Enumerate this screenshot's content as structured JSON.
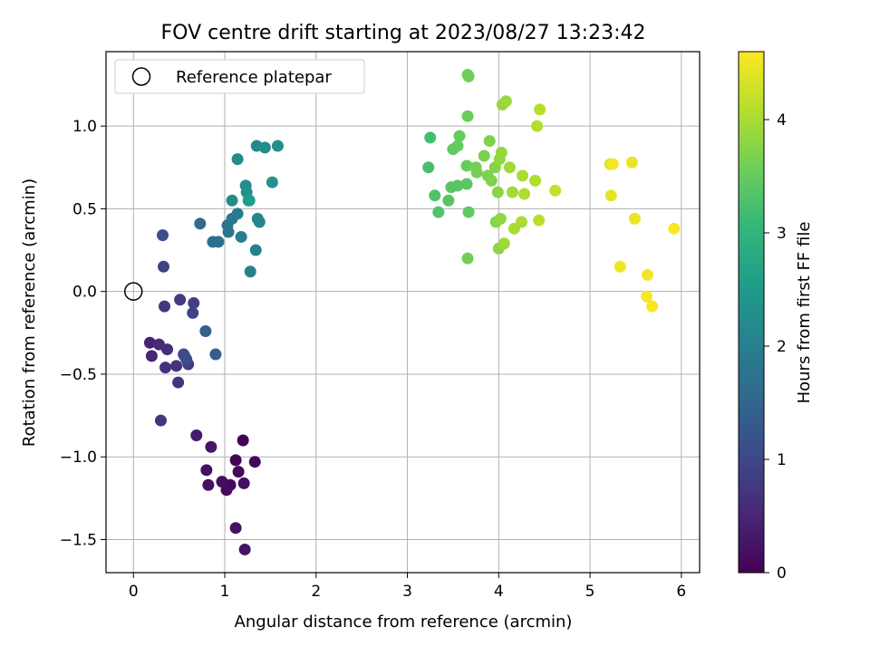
{
  "chart_data": {
    "type": "scatter",
    "title": "FOV centre drift starting at 2023/08/27 13:23:42",
    "xlabel": "Angular distance from reference (arcmin)",
    "ylabel": "Rotation from reference (arcmin)",
    "xlim": [
      -0.3,
      6.2
    ],
    "ylim": [
      -1.7,
      1.45
    ],
    "xticks": [
      0,
      1,
      2,
      3,
      4,
      5,
      6
    ],
    "xtick_labels": [
      "0",
      "1",
      "2",
      "3",
      "4",
      "5",
      "6"
    ],
    "yticks": [
      -1.5,
      -1.0,
      -0.5,
      0.0,
      0.5,
      1.0
    ],
    "ytick_labels": [
      "−1.5",
      "−1.0",
      "−0.5",
      "0.0",
      "0.5",
      "1.0"
    ],
    "grid": true,
    "legend": {
      "placement": "top-left",
      "label": "Reference platepar"
    },
    "reference_point": {
      "x": 0.0,
      "y": 0.0
    },
    "colorbar": {
      "label": "Hours from first FF file",
      "colormap": "viridis",
      "range": [
        0,
        4.6
      ],
      "ticks": [
        0,
        1,
        2,
        3,
        4
      ],
      "tick_labels": [
        "0",
        "1",
        "2",
        "3",
        "4"
      ]
    },
    "points": [
      {
        "x": 1.2,
        "y": -0.9,
        "h": 0.02
      },
      {
        "x": 1.12,
        "y": -1.02,
        "h": 0.05
      },
      {
        "x": 1.33,
        "y": -1.03,
        "h": 0.08
      },
      {
        "x": 1.15,
        "y": -1.09,
        "h": 0.1
      },
      {
        "x": 1.06,
        "y": -1.17,
        "h": 0.12
      },
      {
        "x": 1.02,
        "y": -1.2,
        "h": 0.14
      },
      {
        "x": 0.97,
        "y": -1.15,
        "h": 0.16
      },
      {
        "x": 1.21,
        "y": -1.16,
        "h": 0.18
      },
      {
        "x": 0.8,
        "y": -1.08,
        "h": 0.2
      },
      {
        "x": 0.82,
        "y": -1.17,
        "h": 0.22
      },
      {
        "x": 1.12,
        "y": -1.43,
        "h": 0.24
      },
      {
        "x": 1.22,
        "y": -1.56,
        "h": 0.26
      },
      {
        "x": 0.85,
        "y": -0.94,
        "h": 0.3
      },
      {
        "x": 0.69,
        "y": -0.87,
        "h": 0.35
      },
      {
        "x": 0.18,
        "y": -0.31,
        "h": 0.45
      },
      {
        "x": 0.2,
        "y": -0.39,
        "h": 0.5
      },
      {
        "x": 0.28,
        "y": -0.32,
        "h": 0.55
      },
      {
        "x": 0.37,
        "y": -0.35,
        "h": 0.6
      },
      {
        "x": 0.35,
        "y": -0.46,
        "h": 0.65
      },
      {
        "x": 0.47,
        "y": -0.45,
        "h": 0.68
      },
      {
        "x": 0.49,
        "y": -0.55,
        "h": 0.7
      },
      {
        "x": 0.3,
        "y": -0.78,
        "h": 0.72
      },
      {
        "x": 0.34,
        "y": -0.09,
        "h": 0.75
      },
      {
        "x": 0.51,
        "y": -0.05,
        "h": 0.78
      },
      {
        "x": 0.6,
        "y": -0.44,
        "h": 0.85
      },
      {
        "x": 0.66,
        "y": -0.07,
        "h": 0.9
      },
      {
        "x": 0.65,
        "y": -0.13,
        "h": 0.95
      },
      {
        "x": 0.55,
        "y": -0.38,
        "h": 1.0
      },
      {
        "x": 0.56,
        "y": -0.39,
        "h": 1.05
      },
      {
        "x": 0.58,
        "y": -0.41,
        "h": 1.08
      },
      {
        "x": 0.33,
        "y": 0.15,
        "h": 0.88
      },
      {
        "x": 0.32,
        "y": 0.34,
        "h": 1.1
      },
      {
        "x": 0.9,
        "y": -0.38,
        "h": 1.35
      },
      {
        "x": 0.79,
        "y": -0.24,
        "h": 1.4
      },
      {
        "x": 0.73,
        "y": 0.41,
        "h": 1.6
      },
      {
        "x": 0.87,
        "y": 0.3,
        "h": 1.65
      },
      {
        "x": 0.93,
        "y": 0.3,
        "h": 1.7
      },
      {
        "x": 1.03,
        "y": 0.4,
        "h": 1.75
      },
      {
        "x": 1.04,
        "y": 0.36,
        "h": 1.8
      },
      {
        "x": 1.08,
        "y": 0.44,
        "h": 1.85
      },
      {
        "x": 1.14,
        "y": 0.47,
        "h": 1.9
      },
      {
        "x": 1.18,
        "y": 0.33,
        "h": 1.95
      },
      {
        "x": 1.28,
        "y": 0.12,
        "h": 2.0
      },
      {
        "x": 1.34,
        "y": 0.25,
        "h": 2.05
      },
      {
        "x": 1.36,
        "y": 0.44,
        "h": 2.1
      },
      {
        "x": 1.38,
        "y": 0.42,
        "h": 2.15
      },
      {
        "x": 1.08,
        "y": 0.55,
        "h": 2.2
      },
      {
        "x": 1.23,
        "y": 0.64,
        "h": 2.25
      },
      {
        "x": 1.24,
        "y": 0.6,
        "h": 2.3
      },
      {
        "x": 1.27,
        "y": 0.55,
        "h": 2.4
      },
      {
        "x": 1.14,
        "y": 0.8,
        "h": 2.2
      },
      {
        "x": 1.35,
        "y": 0.88,
        "h": 2.15
      },
      {
        "x": 1.44,
        "y": 0.87,
        "h": 2.25
      },
      {
        "x": 1.58,
        "y": 0.88,
        "h": 2.3
      },
      {
        "x": 1.52,
        "y": 0.66,
        "h": 2.35
      },
      {
        "x": 1.26,
        "y": 0.55,
        "h": 2.55
      },
      {
        "x": 3.25,
        "y": 0.93,
        "h": 3.2
      },
      {
        "x": 3.23,
        "y": 0.75,
        "h": 3.25
      },
      {
        "x": 3.3,
        "y": 0.58,
        "h": 3.3
      },
      {
        "x": 3.34,
        "y": 0.48,
        "h": 3.32
      },
      {
        "x": 3.45,
        "y": 0.55,
        "h": 3.35
      },
      {
        "x": 3.48,
        "y": 0.63,
        "h": 3.38
      },
      {
        "x": 3.55,
        "y": 0.64,
        "h": 3.4
      },
      {
        "x": 3.65,
        "y": 0.65,
        "h": 3.42
      },
      {
        "x": 3.67,
        "y": 0.48,
        "h": 3.44
      },
      {
        "x": 3.5,
        "y": 0.86,
        "h": 3.46
      },
      {
        "x": 3.55,
        "y": 0.88,
        "h": 3.48
      },
      {
        "x": 3.57,
        "y": 0.94,
        "h": 3.5
      },
      {
        "x": 3.65,
        "y": 0.76,
        "h": 3.52
      },
      {
        "x": 3.66,
        "y": 1.06,
        "h": 3.54
      },
      {
        "x": 3.66,
        "y": 1.31,
        "h": 3.56
      },
      {
        "x": 3.67,
        "y": 1.3,
        "h": 3.58
      },
      {
        "x": 3.66,
        "y": 0.2,
        "h": 3.6
      },
      {
        "x": 3.75,
        "y": 0.75,
        "h": 3.62
      },
      {
        "x": 3.76,
        "y": 0.72,
        "h": 3.64
      },
      {
        "x": 3.84,
        "y": 0.82,
        "h": 3.66
      },
      {
        "x": 3.88,
        "y": 0.7,
        "h": 3.68
      },
      {
        "x": 3.9,
        "y": 0.91,
        "h": 3.7
      },
      {
        "x": 3.92,
        "y": 0.67,
        "h": 3.72
      },
      {
        "x": 3.96,
        "y": 0.75,
        "h": 3.74
      },
      {
        "x": 3.97,
        "y": 0.42,
        "h": 3.76
      },
      {
        "x": 3.99,
        "y": 0.6,
        "h": 3.78
      },
      {
        "x": 4.0,
        "y": 0.26,
        "h": 3.8
      },
      {
        "x": 4.02,
        "y": 0.44,
        "h": 3.82
      },
      {
        "x": 4.01,
        "y": 0.8,
        "h": 3.84
      },
      {
        "x": 4.03,
        "y": 0.84,
        "h": 3.86
      },
      {
        "x": 4.04,
        "y": 1.13,
        "h": 3.88
      },
      {
        "x": 4.08,
        "y": 1.15,
        "h": 3.9
      },
      {
        "x": 4.06,
        "y": 0.29,
        "h": 3.92
      },
      {
        "x": 4.12,
        "y": 0.75,
        "h": 3.94
      },
      {
        "x": 4.15,
        "y": 0.6,
        "h": 3.96
      },
      {
        "x": 4.17,
        "y": 0.38,
        "h": 3.98
      },
      {
        "x": 4.25,
        "y": 0.42,
        "h": 4.0
      },
      {
        "x": 4.26,
        "y": 0.7,
        "h": 4.02
      },
      {
        "x": 4.28,
        "y": 0.59,
        "h": 4.04
      },
      {
        "x": 4.4,
        "y": 0.67,
        "h": 4.06
      },
      {
        "x": 4.42,
        "y": 1.0,
        "h": 4.08
      },
      {
        "x": 4.45,
        "y": 1.1,
        "h": 4.1
      },
      {
        "x": 4.44,
        "y": 0.43,
        "h": 4.12
      },
      {
        "x": 4.62,
        "y": 0.61,
        "h": 4.18
      },
      {
        "x": 5.22,
        "y": 0.77,
        "h": 4.4
      },
      {
        "x": 5.23,
        "y": 0.58,
        "h": 4.42
      },
      {
        "x": 5.25,
        "y": 0.77,
        "h": 4.55
      },
      {
        "x": 5.46,
        "y": 0.78,
        "h": 4.45
      },
      {
        "x": 5.49,
        "y": 0.44,
        "h": 4.47
      },
      {
        "x": 5.33,
        "y": 0.15,
        "h": 4.5
      },
      {
        "x": 5.63,
        "y": 0.1,
        "h": 4.52
      },
      {
        "x": 5.62,
        "y": -0.03,
        "h": 4.54
      },
      {
        "x": 5.68,
        "y": -0.09,
        "h": 4.56
      },
      {
        "x": 5.92,
        "y": 0.38,
        "h": 4.58
      }
    ]
  },
  "colors": {
    "grid": "#b0b0b0",
    "axis": "#000000",
    "legend_border": "#cccccc",
    "viridis_stops": [
      "#440154",
      "#482777",
      "#3e4989",
      "#31688e",
      "#26828e",
      "#1f9e89",
      "#35b779",
      "#6ece58",
      "#b5de2b",
      "#fde725"
    ]
  }
}
